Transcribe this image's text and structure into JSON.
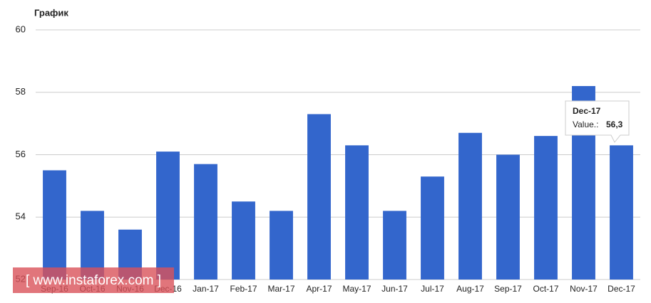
{
  "chart_data": {
    "type": "bar",
    "title": "График",
    "categories": [
      "Sep-16",
      "Oct-16",
      "Nov-16",
      "Dec-16",
      "Jan-17",
      "Feb-17",
      "Mar-17",
      "Apr-17",
      "May-17",
      "Jun-17",
      "Jul-17",
      "Aug-17",
      "Sep-17",
      "Oct-17",
      "Nov-17",
      "Dec-17"
    ],
    "values": [
      55.5,
      54.2,
      53.6,
      56.1,
      55.7,
      54.5,
      54.2,
      57.3,
      56.3,
      54.2,
      55.3,
      56.7,
      56.0,
      56.6,
      58.2,
      56.3
    ],
    "color": "#3366cc",
    "ylim": [
      52,
      60
    ],
    "yticks": [
      52,
      54,
      56,
      58,
      60
    ],
    "grid": true,
    "tooltip": {
      "title": "Dec-17",
      "label": "Value.:",
      "value": "56,3"
    },
    "watermark": "[ www.instaforex.com ]"
  }
}
